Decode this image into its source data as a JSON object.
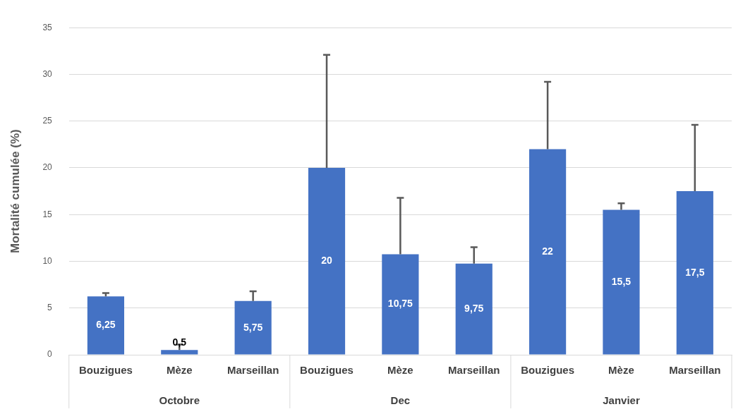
{
  "chart_data": {
    "type": "bar",
    "ylabel": "Mortalité cumulée (%)",
    "categories": [
      "Bouzigues",
      "Mèze",
      "Marseillan",
      "Bouzigues",
      "Mèze",
      "Marseillan",
      "Bouzigues",
      "Mèze",
      "Marseillan"
    ],
    "annotations": [
      "Octobre",
      "Dec",
      "Janvier"
    ],
    "values": [
      6.25,
      0.5,
      5.75,
      20,
      10.75,
      9.75,
      22,
      15.5,
      17.5
    ],
    "value_labels": [
      "6,25",
      "0,5",
      "5,75",
      "20",
      "10,75",
      "9,75",
      "22",
      "15,5",
      "17,5"
    ],
    "errors": [
      [
        6.25,
        6.6
      ],
      [
        0.5,
        1.1
      ],
      [
        5.75,
        6.8
      ],
      [
        20,
        32.1
      ],
      [
        10.75,
        16.8
      ],
      [
        9.75,
        11.5
      ],
      [
        22,
        29.2
      ],
      [
        15.5,
        16.2
      ],
      [
        17.5,
        24.6
      ]
    ],
    "color": "#4472c4",
    "ylim": [
      0,
      35
    ],
    "yticks": [
      0,
      5,
      10,
      15,
      20,
      25,
      30,
      35
    ],
    "grid": "y"
  }
}
